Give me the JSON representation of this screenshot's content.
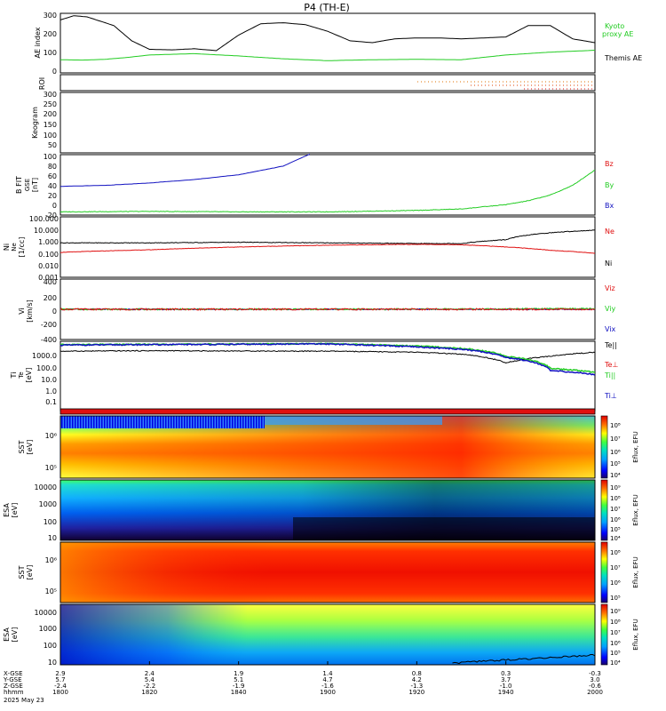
{
  "title": "P4 (TH-E)",
  "date": "2025 May 23",
  "colors": {
    "black": "#000000",
    "red": "#e01010",
    "green": "#22cc22",
    "blue": "#1010c0",
    "orange": "#e07000"
  },
  "panels": {
    "ae": {
      "ylabel": "AE index",
      "yticks": [
        "300",
        "200",
        "100",
        "0"
      ],
      "legend": [
        {
          "text": "Kyoto",
          "color": "#22cc22"
        },
        {
          "text": "proxy AE",
          "color": "#22cc22"
        },
        {
          "text": "Themis AE",
          "color": "#000000"
        }
      ]
    },
    "roi": {
      "ylabel": "ROI"
    },
    "keogram": {
      "ylabel": "Keogram",
      "yticks": [
        "300",
        "250",
        "200",
        "150",
        "100",
        "50"
      ]
    },
    "bfield": {
      "ylabel_lines": [
        "B FIT",
        "GSE",
        "[nT]"
      ],
      "yticks": [
        "100",
        "80",
        "60",
        "40",
        "20",
        "0",
        "-20"
      ],
      "legend": [
        {
          "text": "Bz",
          "color": "#e01010"
        },
        {
          "text": "By",
          "color": "#22cc22"
        },
        {
          "text": "Bx",
          "color": "#1010c0"
        }
      ]
    },
    "density": {
      "ylabel_lines": [
        "Ni",
        "Ne",
        "[1/cc]"
      ],
      "yticks": [
        "100.000",
        "10.000",
        "1.000",
        "0.100",
        "0.010",
        "0.001"
      ],
      "legend": [
        {
          "text": "Ne",
          "color": "#e01010"
        },
        {
          "text": "Ni",
          "color": "#000000"
        }
      ]
    },
    "velocity": {
      "ylabel_lines": [
        "Vi",
        "[km/s]"
      ],
      "yticks": [
        "400",
        "200",
        "0",
        "-200",
        "-400"
      ],
      "legend": [
        {
          "text": "Viz",
          "color": "#e01010"
        },
        {
          "text": "Viy",
          "color": "#22cc22"
        },
        {
          "text": "Vix",
          "color": "#1010c0"
        }
      ]
    },
    "temp": {
      "ylabel_lines": [
        "Ti",
        "Te",
        "[eV]"
      ],
      "yticks": [
        "1000.0",
        "100.0",
        "10.0",
        "1.0",
        "0.1"
      ],
      "legend": [
        {
          "text": "Te||",
          "color": "#000000"
        },
        {
          "text": "Te⊥",
          "color": "#e01010"
        },
        {
          "text": "Ti||",
          "color": "#22cc22"
        },
        {
          "text": "Ti⊥",
          "color": "#1010c0"
        }
      ]
    },
    "sst_e": {
      "ylabel_lines": [
        "SST",
        "[eV]"
      ],
      "yticks": [
        "10⁶",
        "10⁵"
      ]
    },
    "esa_e": {
      "ylabel_lines": [
        "ESA",
        "[eV]"
      ],
      "yticks": [
        "10000",
        "1000",
        "100",
        "10"
      ]
    },
    "sst_i": {
      "ylabel_lines": [
        "SST",
        "[eV]"
      ],
      "yticks": [
        "10⁶",
        "10⁵"
      ]
    },
    "esa_i": {
      "ylabel_lines": [
        "ESA",
        "[eV]"
      ],
      "yticks": [
        "10000",
        "1000",
        "100",
        "10"
      ]
    }
  },
  "colorbars": [
    {
      "label": "Eflux, EFU",
      "ticks": [
        "10⁸",
        "10⁷",
        "10⁶",
        "10⁵",
        "10⁴"
      ]
    },
    {
      "label": "Eflux, EFU",
      "ticks": [
        "10⁹",
        "10⁸",
        "10⁷",
        "10⁶",
        "10⁵",
        "10⁴"
      ]
    },
    {
      "label": "Eflux, EFU",
      "ticks": [
        "10⁸",
        "10⁷",
        "10⁶",
        "10⁵"
      ]
    },
    {
      "label": "Eflux, EFU",
      "ticks": [
        "10⁹",
        "10⁸",
        "10⁷",
        "10⁶",
        "10⁵",
        "10⁴"
      ]
    }
  ],
  "xaxis": {
    "row_labels": [
      "X-GSE",
      "Y-GSE",
      "Z-GSE",
      "hhmm",
      "2025 May 23"
    ],
    "ticks": [
      {
        "x": "2.9",
        "y": "5.7",
        "z": "-2.4",
        "t": "1800"
      },
      {
        "x": "2.4",
        "y": "5.4",
        "z": "-2.2",
        "t": "1820"
      },
      {
        "x": "1.9",
        "y": "5.1",
        "z": "-1.9",
        "t": "1840"
      },
      {
        "x": "1.4",
        "y": "4.7",
        "z": "-1.6",
        "t": "1900"
      },
      {
        "x": "0.8",
        "y": "4.2",
        "z": "-1.3",
        "t": "1920"
      },
      {
        "x": "0.3",
        "y": "3.7",
        "z": "-1.0",
        "t": "1940"
      },
      {
        "x": "-0.3",
        "y": "3.0",
        "z": "-0.6",
        "t": "2000"
      }
    ]
  },
  "chart_data": {
    "type": "line",
    "title": "P4 (TH-E)",
    "x_range": [
      "18:00",
      "20:00"
    ],
    "panels": [
      {
        "name": "AE index",
        "ylim": [
          0,
          300
        ],
        "series": [
          {
            "name": "Themis AE",
            "color": "#000000",
            "x_minutes": [
              0,
              3,
              6,
              12,
              16,
              20,
              25,
              30,
              35,
              40,
              45,
              50,
              55,
              60,
              65,
              70,
              75,
              80,
              85,
              90,
              95,
              100,
              105,
              110,
              115,
              120
            ],
            "values": [
              270,
              292,
              286,
              240,
              160,
              115,
              112,
              118,
              108,
              190,
              250,
              255,
              245,
              210,
              160,
              150,
              170,
              175,
              175,
              170,
              175,
              180,
              240,
              240,
              170,
              150
            ]
          },
          {
            "name": "Kyoto proxy AE",
            "color": "#22cc22",
            "x_minutes": [
              0,
              5,
              10,
              15,
              20,
              30,
              40,
              50,
              60,
              70,
              80,
              90,
              100,
              110,
              120
            ],
            "values": [
              60,
              58,
              62,
              72,
              85,
              92,
              80,
              65,
              55,
              60,
              62,
              60,
              85,
              100,
              110
            ]
          }
        ]
      },
      {
        "name": "B FIT GSE [nT]",
        "ylim": [
          -20,
          100
        ],
        "series": [
          {
            "name": "Bx",
            "color": "#1010c0",
            "x_minutes": [
              0,
              10,
              20,
              30,
              40,
              50,
              56
            ],
            "values": [
              36,
              38,
              43,
              50,
              60,
              78,
              103
            ]
          },
          {
            "name": "By",
            "color": "#22cc22",
            "x_minutes": [
              0,
              20,
              40,
              60,
              80,
              90,
              100,
              105,
              110,
              115,
              120
            ],
            "values": [
              -17,
              -16,
              -17,
              -17,
              -14,
              -11,
              -2,
              6,
              18,
              38,
              70
            ]
          }
        ]
      },
      {
        "name": "Ni Ne [1/cc]",
        "ylim": [
          0.001,
          100
        ],
        "series": [
          {
            "name": "Ni",
            "color": "#000000",
            "x_minutes": [
              0,
              20,
              40,
              60,
              80,
              90,
              100,
              110,
              120
            ],
            "values": [
              0.8,
              0.8,
              0.9,
              0.8,
              0.7,
              0.7,
              1.5,
              6,
              10
            ]
          },
          {
            "name": "Ne",
            "color": "#e01010",
            "x_minutes": [
              0,
              20,
              40,
              60,
              80,
              90,
              100,
              110,
              120
            ],
            "values": [
              0.12,
              0.2,
              0.35,
              0.5,
              0.6,
              0.55,
              0.35,
              0.18,
              0.1
            ]
          }
        ]
      },
      {
        "name": "Vi [km/s]",
        "ylim": [
          -450,
          450
        ],
        "series": [
          {
            "name": "Vix",
            "color": "#1010c0",
            "x_minutes": [
              0,
              60,
              120
            ],
            "values": [
              0,
              0,
              0
            ]
          },
          {
            "name": "Viy",
            "color": "#22cc22",
            "x_minutes": [
              0,
              60,
              100,
              120
            ],
            "values": [
              0,
              0,
              5,
              10
            ]
          },
          {
            "name": "Viz",
            "color": "#e01010",
            "x_minutes": [
              0,
              60,
              120
            ],
            "values": [
              0,
              0,
              0
            ]
          }
        ]
      },
      {
        "name": "Ti Te [eV]",
        "ylim": [
          0.05,
          5000
        ],
        "series": [
          {
            "name": "Te||",
            "color": "#000000",
            "x_minutes": [
              0,
              20,
              40,
              60,
              80,
              90,
              100,
              110,
              120
            ],
            "values": [
              1200,
              1300,
              1250,
              1200,
              1000,
              700,
              150,
              500,
              1000
            ]
          },
          {
            "name": "Ti||",
            "color": "#22cc22",
            "x_minutes": [
              0,
              20,
              40,
              60,
              80,
              90,
              100,
              110,
              120
            ],
            "values": [
              3800,
              4000,
              4200,
              4500,
              3000,
              2000,
              500,
              60,
              30
            ]
          },
          {
            "name": "Ti⊥",
            "color": "#1010c0",
            "x_minutes": [
              0,
              20,
              40,
              60,
              80,
              90,
              100,
              110,
              120
            ],
            "values": [
              3500,
              3800,
              4000,
              4300,
              2500,
              1700,
              400,
              40,
              20
            ]
          }
        ]
      }
    ]
  }
}
